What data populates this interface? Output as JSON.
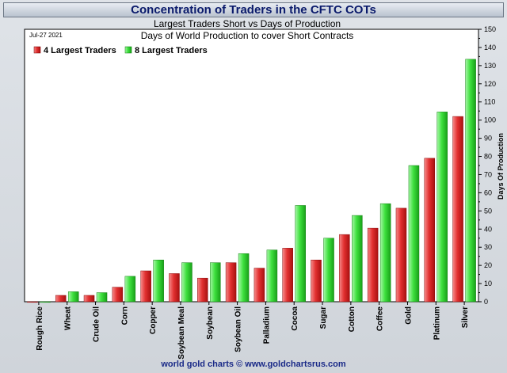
{
  "header": {
    "title": "Concentration of Traders in the CFTC COTs"
  },
  "footer": {
    "credit": "world gold charts © www.goldchartsrus.com"
  },
  "chart_data": {
    "type": "bar",
    "title": "Largest Traders Short vs Days of Production",
    "subtitle": "Days of World Production to cover Short Contracts",
    "date_label": "Jul-27  2021",
    "ylabel": "Days Of Production",
    "xlabel": "",
    "ylim": [
      0,
      150
    ],
    "yticks": [
      0,
      10,
      20,
      30,
      40,
      50,
      60,
      70,
      80,
      90,
      100,
      110,
      120,
      130,
      140,
      150
    ],
    "axis_side": "right",
    "legend_position": "top-left",
    "grid": false,
    "categories": [
      "Rough Rice",
      "Wheat",
      "Crude Oil",
      "Corn",
      "Copper",
      "Soybean Meal",
      "Soybean",
      "Soybean Oil",
      "Palladium",
      "Cocoa",
      "Sugar",
      "Cotton",
      "Coffee",
      "Gold",
      "Platinum",
      "Silver"
    ],
    "series": [
      {
        "name": "4 Largest Traders",
        "color": "#e23030",
        "values": [
          0,
          3.5,
          3.5,
          8,
          17,
          15.5,
          13,
          21.5,
          18.5,
          29.5,
          23,
          37,
          40.5,
          51.5,
          79,
          102
        ]
      },
      {
        "name": "8 Largest Traders",
        "color": "#3ee03e",
        "values": [
          0,
          5.5,
          5,
          14,
          23,
          21.5,
          21.5,
          26.5,
          28.5,
          53,
          35,
          47.5,
          54,
          75,
          104.5,
          133.5
        ]
      }
    ]
  }
}
